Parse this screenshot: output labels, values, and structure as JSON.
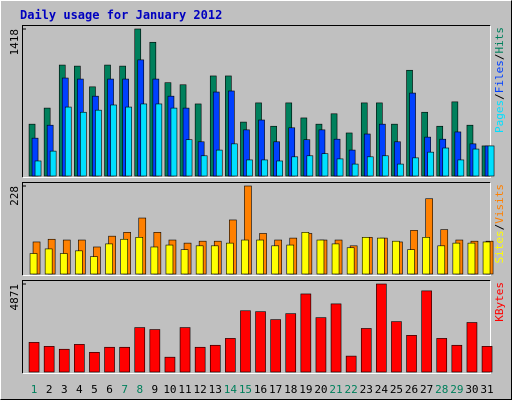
{
  "title": "Daily usage for January 2012",
  "chart_data": [
    {
      "type": "bar",
      "legend_separator": "/",
      "ylim": [
        0,
        1418
      ],
      "yticks": [
        1418
      ],
      "series": [
        {
          "name": "Hits",
          "color": "#00805c",
          "values": [
            500,
            655,
            1070,
            1060,
            860,
            1070,
            1060,
            1418,
            1290,
            900,
            880,
            695,
            965,
            965,
            520,
            705,
            480,
            705,
            560,
            500,
            600,
            415,
            705,
            705,
            500,
            1020,
            615,
            480,
            715,
            490,
            290
          ]
        },
        {
          "name": "Files",
          "color": "#0040ff",
          "values": [
            365,
            490,
            945,
            935,
            770,
            935,
            935,
            1120,
            935,
            770,
            655,
            330,
            810,
            820,
            445,
            540,
            330,
            465,
            350,
            445,
            355,
            250,
            405,
            500,
            330,
            800,
            375,
            355,
            425,
            310,
            290
          ]
        },
        {
          "name": "Pages",
          "color": "#00e0ff",
          "values": [
            145,
            240,
            665,
            615,
            635,
            685,
            665,
            695,
            695,
            655,
            350,
            195,
            250,
            310,
            155,
            155,
            145,
            185,
            195,
            215,
            165,
            115,
            185,
            195,
            115,
            175,
            230,
            270,
            155,
            260,
            290
          ]
        }
      ]
    },
    {
      "type": "bar",
      "legend_separator": "/",
      "ylim": [
        0,
        228
      ],
      "yticks": [
        228
      ],
      "series": [
        {
          "name": "Visits",
          "color": "#ff8000",
          "values": [
            83,
            90,
            88,
            88,
            70,
            98,
            108,
            145,
            108,
            88,
            80,
            85,
            85,
            140,
            228,
            105,
            88,
            93,
            105,
            88,
            88,
            73,
            95,
            93,
            83,
            113,
            195,
            115,
            88,
            85,
            85
          ]
        },
        {
          "name": "Sites",
          "color": "#ffff00",
          "values": [
            53,
            65,
            53,
            60,
            45,
            78,
            90,
            95,
            70,
            75,
            63,
            73,
            73,
            80,
            88,
            88,
            73,
            75,
            108,
            88,
            78,
            68,
            95,
            93,
            85,
            63,
            95,
            73,
            80,
            80,
            83
          ]
        }
      ]
    },
    {
      "type": "bar",
      "ylim": [
        0,
        4871
      ],
      "yticks": [
        4871
      ],
      "categories": [
        "1",
        "2",
        "3",
        "4",
        "5",
        "6",
        "7",
        "8",
        "9",
        "10",
        "11",
        "12",
        "13",
        "14",
        "15",
        "16",
        "17",
        "18",
        "19",
        "20",
        "21",
        "22",
        "23",
        "24",
        "25",
        "26",
        "27",
        "28",
        "29",
        "30",
        "31"
      ],
      "category_color": "#000000",
      "weekend_color": "#00805c",
      "weekend_indices": [
        0,
        6,
        7,
        13,
        14,
        20,
        21,
        27,
        28
      ],
      "series": [
        {
          "name": "KBytes",
          "color": "#ff0000",
          "values": [
            1640,
            1420,
            1260,
            1530,
            1090,
            1370,
            1370,
            2460,
            2350,
            820,
            2460,
            1370,
            1480,
            1860,
            3390,
            3340,
            2900,
            3230,
            4320,
            3010,
            3770,
            880,
            2410,
            4871,
            2790,
            2030,
            4490,
            1860,
            1480,
            2740,
            1420
          ]
        }
      ]
    }
  ]
}
